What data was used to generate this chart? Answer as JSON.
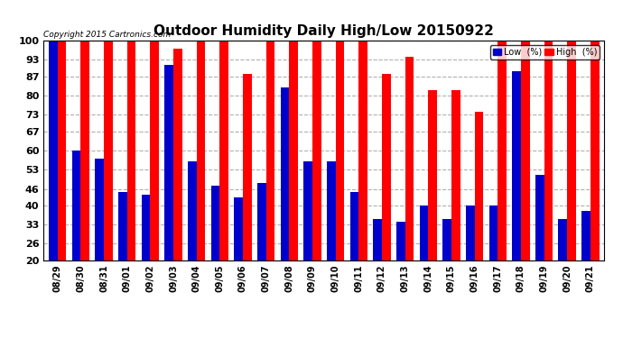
{
  "title": "Outdoor Humidity Daily High/Low 20150922",
  "copyright": "Copyright 2015 Cartronics.com",
  "ylim": [
    20,
    100
  ],
  "yticks": [
    20,
    26,
    33,
    40,
    46,
    53,
    60,
    67,
    73,
    80,
    87,
    93,
    100
  ],
  "dates": [
    "08/29",
    "08/30",
    "08/31",
    "09/01",
    "09/02",
    "09/03",
    "09/04",
    "09/05",
    "09/06",
    "09/07",
    "09/08",
    "09/09",
    "09/10",
    "09/11",
    "09/12",
    "09/13",
    "09/14",
    "09/15",
    "09/16",
    "09/17",
    "09/18",
    "09/19",
    "09/20",
    "09/21"
  ],
  "high": [
    100,
    100,
    100,
    100,
    100,
    97,
    100,
    100,
    88,
    100,
    100,
    100,
    100,
    100,
    88,
    94,
    82,
    82,
    74,
    100,
    100,
    100,
    100,
    100
  ],
  "low": [
    100,
    60,
    57,
    45,
    44,
    91,
    56,
    47,
    43,
    48,
    83,
    56,
    56,
    45,
    35,
    34,
    40,
    35,
    40,
    40,
    89,
    51,
    35,
    38
  ],
  "high_color": "#ff0000",
  "low_color": "#0000cc",
  "bg_color": "#ffffff",
  "grid_color": "#b0b0b0",
  "title_fontsize": 11,
  "legend_low_label": "Low  (%)",
  "legend_high_label": "High  (%)"
}
